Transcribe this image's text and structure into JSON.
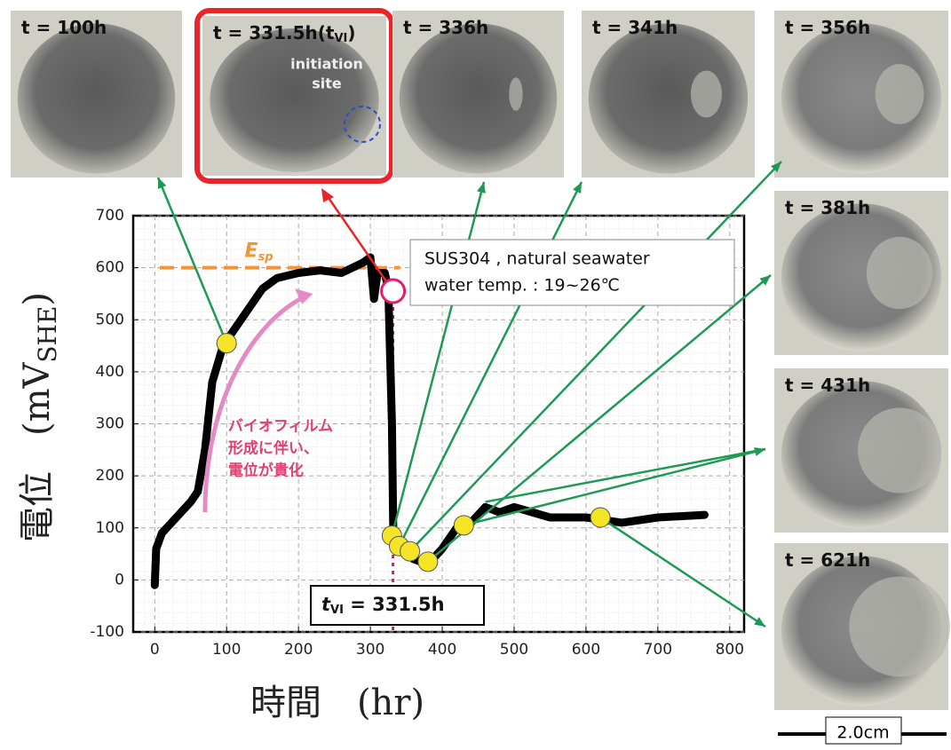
{
  "chart_data": {
    "type": "line",
    "x": [
      0,
      2,
      10,
      30,
      50,
      60,
      70,
      80,
      95,
      110,
      130,
      150,
      170,
      200,
      230,
      260,
      290,
      300,
      305,
      310,
      320,
      325,
      330,
      332,
      340,
      360,
      380,
      400,
      420,
      440,
      460,
      480,
      500,
      550,
      600,
      650,
      700,
      765
    ],
    "values": [
      -10,
      60,
      90,
      120,
      150,
      170,
      250,
      380,
      450,
      480,
      520,
      560,
      580,
      590,
      595,
      590,
      610,
      620,
      540,
      590,
      590,
      560,
      300,
      80,
      70,
      40,
      30,
      60,
      100,
      110,
      140,
      130,
      140,
      120,
      120,
      110,
      120,
      125
    ],
    "color": "#000000",
    "highlight": {
      "x": [
        100,
        330,
        340,
        355,
        380,
        430,
        620
      ],
      "values": [
        455,
        85,
        65,
        55,
        35,
        105,
        120
      ],
      "color": "#f4e626"
    },
    "vi_point": {
      "x": 331.5,
      "value": 555,
      "color": "#e0206a"
    },
    "esp": {
      "value": 600,
      "label": "E",
      "label_sub": "sp",
      "color": "#f0953a"
    },
    "vline": {
      "value": 331.5,
      "color": "#d0206a"
    },
    "tvi_box": {
      "label": "t",
      "label_sub": "VI",
      "label_end": " = 331.5h"
    },
    "info": [
      "SUS304 , natural seawater",
      "water temp. : 19~26℃"
    ],
    "annotation": [
      "バイオフィルム",
      "形成に伴い、",
      "電位が貴化"
    ],
    "xlabel": "時間　(hr)",
    "ylabel": "電位　(mV",
    "ylabel_sub": "SHE",
    "ylabel_end": ")",
    "xlim": [
      -30,
      820
    ],
    "ylim": [
      -100,
      700
    ],
    "xticks": [
      0,
      100,
      200,
      300,
      400,
      500,
      600,
      700,
      800
    ],
    "yticks": [
      -100,
      0,
      100,
      200,
      300,
      400,
      500,
      600,
      700
    ],
    "grid": true
  },
  "photos": [
    {
      "label": "t = 100h"
    },
    {
      "label": "t = 331.5h(t",
      "label_sub": "VI",
      "label_end": ")",
      "note": [
        "initiation",
        "site"
      ]
    },
    {
      "label": "t = 336h"
    },
    {
      "label": "t = 341h"
    },
    {
      "label": "t = 356h"
    },
    {
      "label": "t = 381h"
    },
    {
      "label": "t = 431h"
    },
    {
      "label": "t = 621h"
    }
  ],
  "scale": "2.0cm"
}
